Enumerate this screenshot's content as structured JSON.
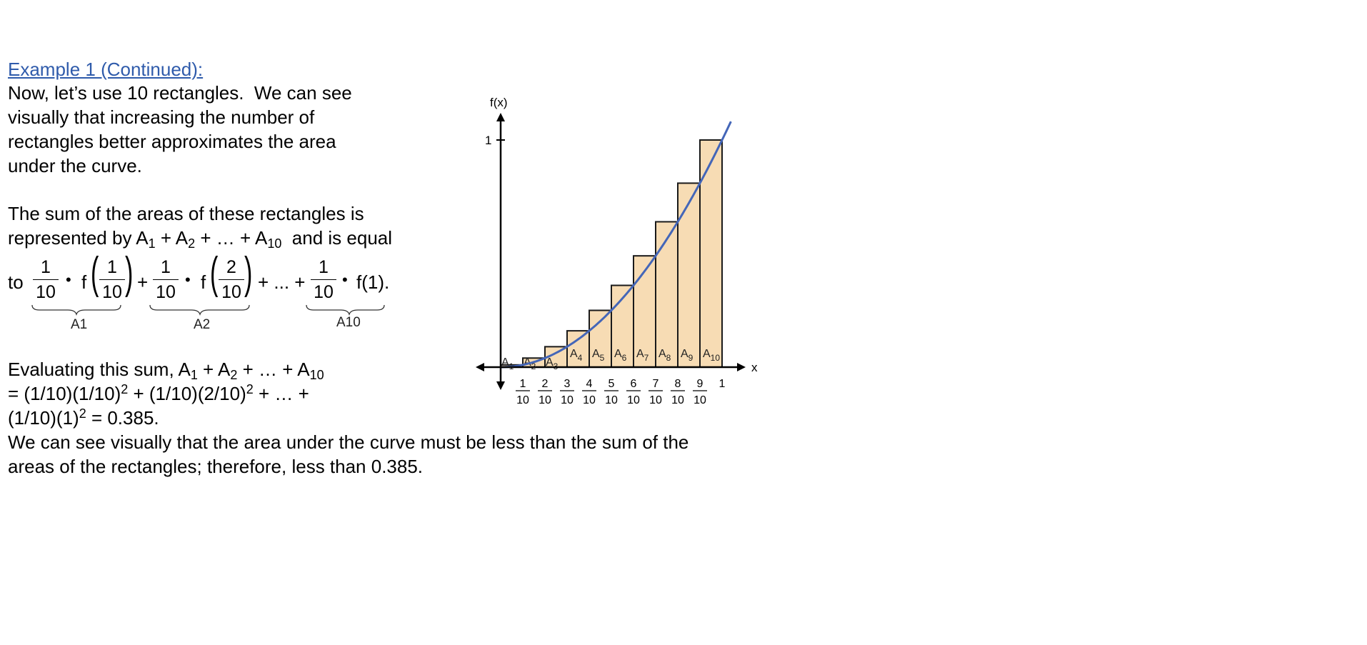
{
  "heading": "Example 1 (Continued):",
  "intro": [
    "Now, let’s use 10 rectangles.  We can see",
    "visually that increasing the number of",
    "rectangles better approximates the area",
    "under the curve."
  ],
  "sum_line1": "The sum of the areas of these rectangles is",
  "sum_line2": {
    "prefix": "represented by A",
    "s1": "1",
    "mid1": " + A",
    "s2": "2",
    "mid2": " + … + A",
    "s10": "10",
    "suffix": "  and is equal"
  },
  "formula": {
    "to": "to",
    "frac_num": "1",
    "frac_den": "10",
    "dot": "•",
    "f": "f",
    "arg1_num": "1",
    "arg1_den": "10",
    "arg2_num": "2",
    "arg2_den": "10",
    "plus": "+",
    "ellipsis_plus": "+ ... +",
    "last": "f(1).",
    "brace_labels": [
      "A1",
      "A2",
      "A10"
    ]
  },
  "evaluating": {
    "line1_prefix": "Evaluating this sum, A",
    "line1_s1": "1",
    "line1_mid1": " + A",
    "line1_s2": "2",
    "line1_mid2": " + … + A",
    "line1_s10": "10",
    "line2_a": "= (1/10)(1/10)",
    "line2_sup1": "2",
    "line2_b": " + (1/10)(2/10)",
    "line2_sup2": "2",
    "line2_c": " + … +",
    "line3_a": "(1/10)(1)",
    "line3_sup": "2",
    "line3_b": " = 0.385."
  },
  "conclusion": [
    "We can see visually that the area under the curve must be less than the sum of the",
    "areas of the rectangles; therefore, less than 0.385."
  ],
  "graph": {
    "y_axis_label": "f(x)",
    "x_axis_label": "x",
    "y_tick_label": "1",
    "x_tick_numerators": [
      "1",
      "2",
      "3",
      "4",
      "5",
      "6",
      "7",
      "8",
      "9"
    ],
    "x_tick_denominator": "10",
    "x_last_tick": "1",
    "rect_label_prefix": "A",
    "rect_subs": [
      "1",
      "2",
      "3",
      "4",
      "5",
      "6",
      "7",
      "8",
      "9",
      "10"
    ],
    "rect_heights": [
      0.01,
      0.04,
      0.09,
      0.16,
      0.25,
      0.36,
      0.49,
      0.64,
      0.81,
      1.0
    ],
    "rect_fill": "#f7dcb4",
    "curve_color": "#4466b8"
  }
}
